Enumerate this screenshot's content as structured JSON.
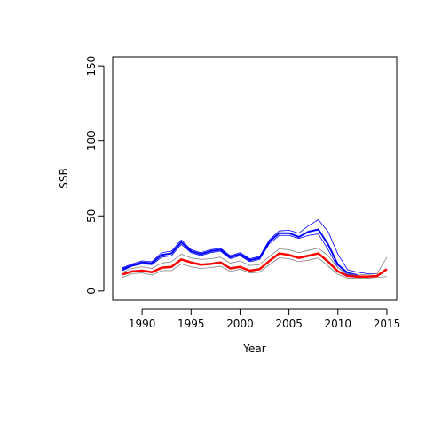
{
  "chart_data": {
    "type": "line",
    "xlabel": "Year",
    "ylabel": "SSB",
    "xlim": [
      1987,
      2016
    ],
    "ylim": [
      -6,
      156
    ],
    "xticks": [
      1990,
      1995,
      2000,
      2005,
      2010,
      2015
    ],
    "yticks": [
      0,
      50,
      100,
      150
    ],
    "grid": false,
    "x": [
      1988,
      1989,
      1990,
      1991,
      1992,
      1993,
      1994,
      1995,
      1996,
      1997,
      1998,
      1999,
      2000,
      2001,
      2002,
      2003,
      2004,
      2005,
      2006,
      2007,
      2008,
      2009,
      2010,
      2011,
      2012,
      2013,
      2014,
      2015
    ],
    "series": [
      {
        "color": "#0000ff",
        "width": 2,
        "values": [
          14.5,
          17,
          19,
          18.5,
          24,
          25,
          32.5,
          26.5,
          24.5,
          26.5,
          27.5,
          22.5,
          24.5,
          20.5,
          22,
          33,
          38.5,
          38.5,
          36,
          39.5,
          41,
          31,
          17.5,
          12,
          10.5,
          null,
          null,
          null
        ]
      },
      {
        "color": "#0000ff",
        "width": 0.8,
        "values": [
          13.5,
          16.5,
          18,
          17.5,
          22.5,
          23.5,
          31,
          25.5,
          23.5,
          25.5,
          26.5,
          21.5,
          23.5,
          19.5,
          21,
          31.5,
          37,
          37,
          35,
          37,
          38,
          27.5,
          15.5,
          11,
          10,
          null,
          null,
          null
        ]
      },
      {
        "color": "#0000ff",
        "width": 0.8,
        "values": [
          15.5,
          18,
          20,
          19.5,
          25.5,
          26.5,
          34,
          27.5,
          25.5,
          27.5,
          28.5,
          23.5,
          25.5,
          21.5,
          23,
          34,
          40,
          40.5,
          38.5,
          43.5,
          47.5,
          39.5,
          24.5,
          14,
          12.5,
          11.5,
          11.5,
          null
        ]
      },
      {
        "color": "#808080",
        "width": 0.8,
        "values": [
          9,
          11.5,
          12,
          10.5,
          13.5,
          13.5,
          18,
          16,
          15,
          15.5,
          16.5,
          13,
          14.5,
          12,
          12.5,
          17.5,
          22,
          21.5,
          19.5,
          20.5,
          22,
          16.5,
          11,
          8.5,
          8.5,
          8.5,
          9,
          9.5
        ]
      },
      {
        "color": "#808080",
        "width": 0.8,
        "values": [
          12.5,
          15,
          16,
          15,
          18.5,
          19.5,
          24.5,
          22,
          21,
          21.5,
          22.5,
          18.5,
          20,
          17,
          17.5,
          23,
          28,
          27.5,
          25.5,
          27,
          28.5,
          23.5,
          15.5,
          11.5,
          10.5,
          11,
          11.5,
          22.5
        ]
      },
      {
        "color": "#ff0000",
        "width": 2.5,
        "values": [
          11,
          13,
          13.5,
          12.5,
          15.5,
          16,
          21,
          19,
          17.5,
          18,
          19,
          15,
          16,
          13.5,
          14.5,
          20,
          25,
          24,
          22,
          23.5,
          25,
          19.5,
          13,
          10,
          9.5,
          9.5,
          10,
          14.5
        ]
      }
    ]
  }
}
